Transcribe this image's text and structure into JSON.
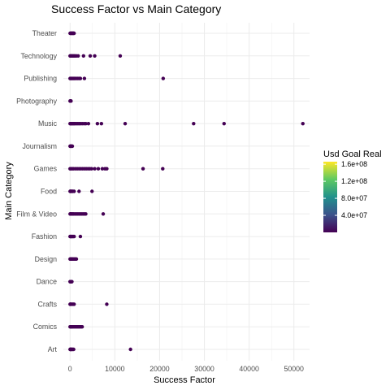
{
  "chart_data": {
    "type": "scatter",
    "title": "Success Factor vs Main Category",
    "xlabel": "Success Factor",
    "ylabel": "Main Category",
    "xlim": [
      -1500,
      53500
    ],
    "x_ticks": [
      0,
      10000,
      20000,
      30000,
      40000,
      50000
    ],
    "x_tick_labels": [
      "0",
      "10000",
      "20000",
      "30000",
      "40000",
      "50000"
    ],
    "categories": [
      "Art",
      "Comics",
      "Crafts",
      "Dance",
      "Design",
      "Fashion",
      "Film & Video",
      "Food",
      "Games",
      "Journalism",
      "Music",
      "Photography",
      "Publishing",
      "Technology",
      "Theater"
    ],
    "grid": true,
    "point_color": "#440154",
    "color_scale": {
      "title": "Usd Goal Real",
      "palette": "viridis",
      "range": [
        0,
        166000000
      ],
      "ticks": [
        40000000,
        80000000,
        120000000,
        160000000
      ],
      "tick_labels": [
        "4.0e+07",
        "8.0e+07",
        "1.2e+08",
        "1.6e+08"
      ],
      "colors": [
        "#440154",
        "#3b528b",
        "#21918c",
        "#5ec962",
        "#fde725"
      ]
    },
    "series": [
      {
        "category": "Art",
        "x": [
          0,
          50,
          120,
          200,
          300,
          450,
          600,
          800,
          13500
        ]
      },
      {
        "category": "Comics",
        "x": [
          0,
          100,
          200,
          350,
          500,
          700,
          900,
          1100,
          1300,
          1500,
          1700,
          1900,
          2100,
          2300,
          2500,
          2700
        ]
      },
      {
        "category": "Crafts",
        "x": [
          0,
          50,
          150,
          300,
          500,
          700,
          900,
          8200
        ]
      },
      {
        "category": "Dance",
        "x": [
          0,
          50,
          120,
          200,
          300,
          400
        ]
      },
      {
        "category": "Design",
        "x": [
          0,
          100,
          200,
          300,
          450,
          600,
          800,
          1000,
          1200,
          1400
        ]
      },
      {
        "category": "Fashion",
        "x": [
          0,
          100,
          200,
          350,
          500,
          700,
          900,
          2300
        ]
      },
      {
        "category": "Film & Video",
        "x": [
          0,
          100,
          200,
          400,
          600,
          800,
          1100,
          1400,
          1700,
          2000,
          2300,
          2600,
          2900,
          3200,
          3500,
          7400
        ]
      },
      {
        "category": "Food",
        "x": [
          0,
          100,
          200,
          400,
          600,
          900,
          2000,
          4900
        ]
      },
      {
        "category": "Games",
        "x": [
          0,
          200,
          500,
          800,
          1200,
          1600,
          2000,
          2400,
          2800,
          3200,
          3600,
          4000,
          4400,
          4800,
          5500,
          6300,
          7200,
          7800,
          8200,
          16300,
          20700
        ]
      },
      {
        "category": "Journalism",
        "x": [
          0,
          50,
          120,
          200,
          300,
          400,
          500
        ]
      },
      {
        "category": "Music",
        "x": [
          0,
          150,
          300,
          500,
          700,
          900,
          1100,
          1400,
          1700,
          2000,
          2300,
          2700,
          3100,
          3500,
          4100,
          6100,
          7000,
          12300,
          27600,
          34400,
          52000
        ]
      },
      {
        "category": "Photography",
        "x": [
          0,
          50,
          100,
          150,
          200
        ]
      },
      {
        "category": "Publishing",
        "x": [
          0,
          150,
          300,
          500,
          700,
          900,
          1100,
          1400,
          1700,
          2000,
          2300,
          3200,
          20800
        ]
      },
      {
        "category": "Technology",
        "x": [
          0,
          150,
          300,
          500,
          700,
          900,
          1100,
          1400,
          1800,
          3000,
          4500,
          5500,
          11200
        ]
      },
      {
        "category": "Theater",
        "x": [
          0,
          100,
          200,
          300,
          400,
          500,
          600,
          700,
          800,
          900
        ]
      }
    ]
  }
}
